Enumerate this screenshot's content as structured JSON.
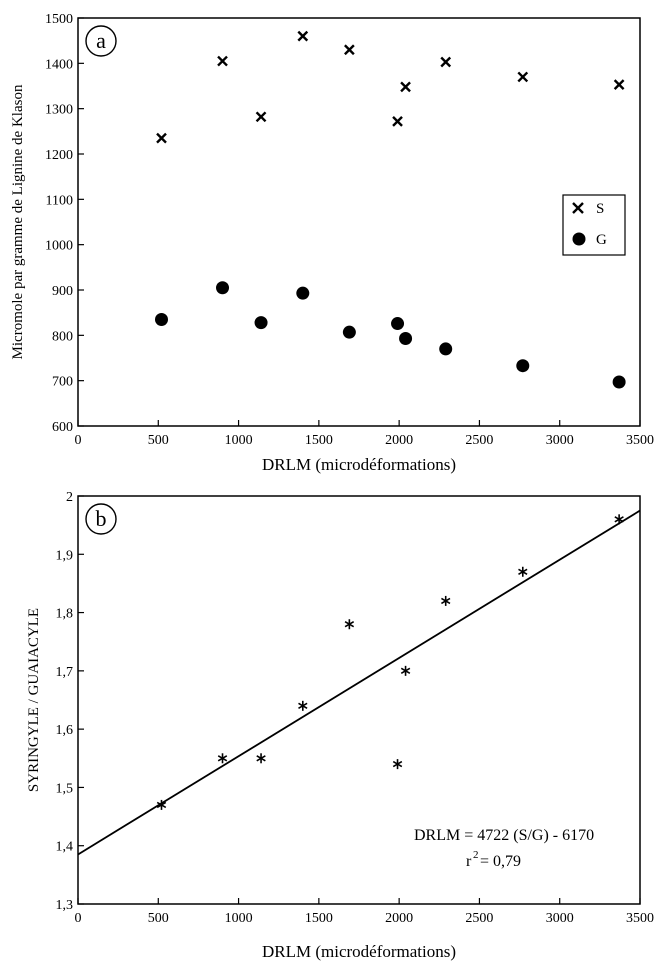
{
  "chart_data": [
    {
      "id": "a",
      "panel_label": "a",
      "type": "scatter",
      "xlabel": "DRLM (microdéformations)",
      "ylabel": "Micromole par gramme de Lignine de Klason",
      "xlim": [
        0,
        3500
      ],
      "ylim": [
        600,
        1500
      ],
      "xticks": [
        "0",
        "500",
        "1000",
        "1500",
        "2000",
        "2500",
        "3000",
        "3500"
      ],
      "yticks": [
        "600",
        "700",
        "800",
        "900",
        "1000",
        "1100",
        "1200",
        "1300",
        "1400",
        "1500"
      ],
      "grid": false,
      "legend_position": "right",
      "series": [
        {
          "name": "S",
          "marker": "x",
          "points": [
            [
              520,
              1235
            ],
            [
              900,
              1405
            ],
            [
              1140,
              1282
            ],
            [
              1400,
              1460
            ],
            [
              1690,
              1430
            ],
            [
              1990,
              1272
            ],
            [
              2040,
              1348
            ],
            [
              2290,
              1403
            ],
            [
              2770,
              1370
            ],
            [
              3370,
              1353
            ]
          ]
        },
        {
          "name": "G",
          "marker": "circle",
          "points": [
            [
              520,
              835
            ],
            [
              900,
              905
            ],
            [
              1140,
              828
            ],
            [
              1400,
              893
            ],
            [
              1690,
              807
            ],
            [
              1990,
              826
            ],
            [
              2040,
              793
            ],
            [
              2290,
              770
            ],
            [
              2770,
              733
            ],
            [
              3370,
              697
            ]
          ]
        }
      ]
    },
    {
      "id": "b",
      "panel_label": "b",
      "type": "scatter",
      "xlabel": "DRLM (microdéformations)",
      "ylabel": "SYRINGYLE / GUAIACYLE",
      "xlim": [
        0,
        3500
      ],
      "ylim": [
        1.3,
        2.0
      ],
      "xticks": [
        "0",
        "500",
        "1000",
        "1500",
        "2000",
        "2500",
        "3000",
        "3500"
      ],
      "yticks": [
        "1,3",
        "1,4",
        "1,5",
        "1,6",
        "1,7",
        "1,8",
        "1,9",
        "2"
      ],
      "grid": false,
      "series": [
        {
          "name": "",
          "marker": "asterisk",
          "points": [
            [
              520,
              1.47
            ],
            [
              900,
              1.55
            ],
            [
              1140,
              1.55
            ],
            [
              1400,
              1.64
            ],
            [
              1690,
              1.78
            ],
            [
              1990,
              1.54
            ],
            [
              2040,
              1.7
            ],
            [
              2290,
              1.82
            ],
            [
              2770,
              1.87
            ],
            [
              3370,
              1.96
            ]
          ]
        }
      ],
      "regression_line": [
        [
          0,
          1.385
        ],
        [
          3500,
          1.975
        ]
      ],
      "annotations": [
        "DRLM = 4722 (S/G) - 6170",
        "r",
        "2",
        "= 0,79"
      ]
    }
  ]
}
